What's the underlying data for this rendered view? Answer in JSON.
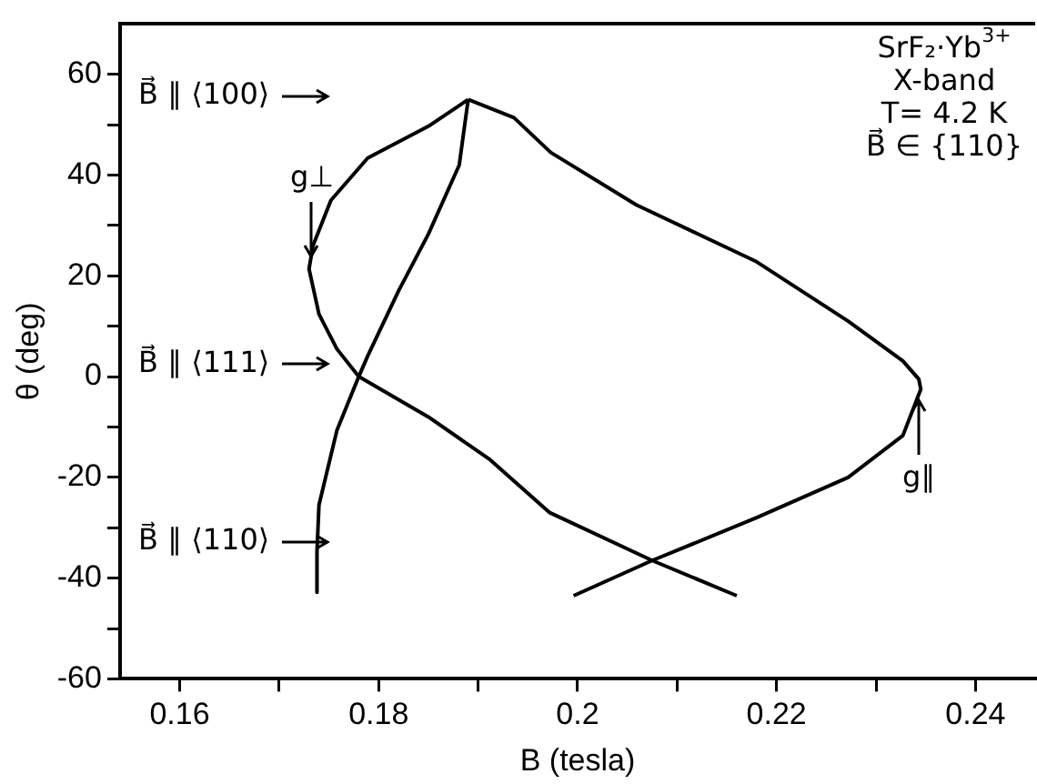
{
  "chart_data": {
    "type": "line",
    "xlabel": "B (tesla)",
    "ylabel": "θ (deg)",
    "xlim": [
      0.154,
      0.246
    ],
    "ylim": [
      -60,
      70
    ],
    "xticks": [
      0.16,
      {
        "value": 0.17,
        "label": null
      },
      0.18,
      {
        "value": 0.19,
        "label": null
      },
      0.2,
      {
        "value": 0.21,
        "label": null
      },
      0.22,
      {
        "value": 0.23,
        "label": null
      },
      0.24
    ],
    "yticks": [
      -60,
      {
        "value": -50,
        "label": null
      },
      -40,
      {
        "value": -30,
        "label": null
      },
      -20,
      {
        "value": -10,
        "label": null
      },
      0,
      {
        "value": 10,
        "label": null
      },
      20,
      {
        "value": 30,
        "label": null
      },
      40,
      {
        "value": 50,
        "label": null
      },
      60
    ],
    "series": [
      {
        "color": "#000000",
        "x": [
          0.189,
          0.185,
          0.1789,
          0.1752,
          0.1734,
          0.173,
          0.174,
          0.1758,
          0.178,
          0.185,
          0.1912,
          0.1972,
          0.2075,
          0.216
        ],
        "values": [
          55,
          49.7,
          43.4,
          35,
          26,
          21.4,
          12.4,
          5.5,
          0,
          -8,
          -16.5,
          -27,
          -36.5,
          -43.5
        ]
      },
      {
        "color": "#000000",
        "x": [
          0.189,
          0.1936,
          0.1973,
          0.2059,
          0.218,
          0.2272,
          0.2327,
          0.2343,
          0.2345,
          0.2327,
          0.2272,
          0.218,
          0.2075,
          0.1996
        ],
        "values": [
          55,
          51.4,
          44.5,
          34.1,
          22.8,
          11,
          3.1,
          -0.5,
          -2.5,
          -11.7,
          -20,
          -28,
          -36.5,
          -43.5
        ]
      },
      {
        "color": "#000000",
        "x": [
          0.189,
          0.1881,
          0.185,
          0.182,
          0.1789,
          0.178,
          0.1758,
          0.174,
          0.1738,
          0.1738
        ],
        "values": [
          55,
          42,
          28.3,
          17,
          4.1,
          0,
          -10.7,
          -25.5,
          -34.8,
          -42.8
        ]
      }
    ],
    "marker": "none",
    "line_style": "solid",
    "grid": false,
    "legend": false,
    "annotations": [
      "SrF₂·Yb$^{3+}$",
      "X-band",
      "T= 4.2 K",
      "B⃗ ∈ {110}",
      "B⃗ ∥ ⟨100⟩",
      "B⃗ ∥ ⟨111⟩",
      "B⃗ ∥ ⟨110⟩",
      {
        "text": "g⊥",
        "x": 0.1733,
        "y": 22
      },
      {
        "text": "g∥",
        "x": 0.2343,
        "y": -3
      }
    ]
  }
}
